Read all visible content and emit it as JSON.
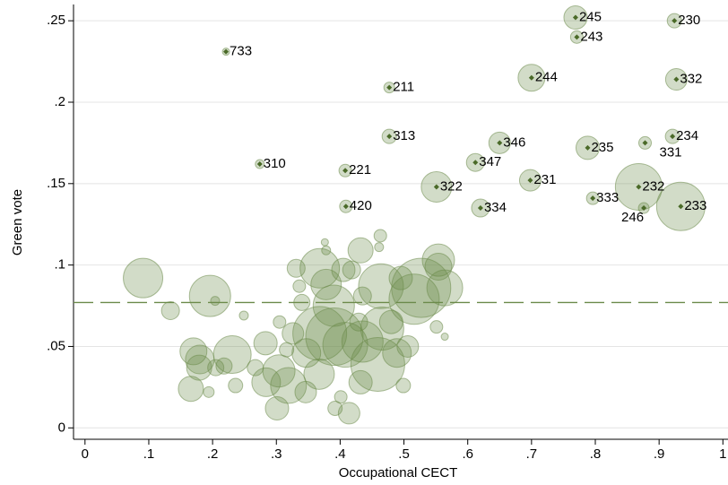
{
  "chart_data": {
    "type": "scatter",
    "x_label": "Occupational CECT",
    "y_label": "Green vote",
    "xlim": [
      -0.018,
      1.008
    ],
    "ylim": [
      -0.007,
      0.26
    ],
    "xticks": [
      0,
      {
        "value": 0.1,
        "label": ".1"
      },
      {
        "value": 0.2,
        "label": ".2"
      },
      {
        "value": 0.3,
        "label": ".3"
      },
      {
        "value": 0.4,
        "label": ".4"
      },
      {
        "value": 0.5,
        "label": ".5"
      },
      {
        "value": 0.6,
        "label": ".6"
      },
      {
        "value": 0.7,
        "label": ".7"
      },
      {
        "value": 0.8,
        "label": ".8"
      },
      {
        "value": 0.9,
        "label": ".9"
      },
      1
    ],
    "yticks": [
      0,
      {
        "value": 0.05,
        "label": ".05"
      },
      {
        "value": 0.1,
        "label": ".1"
      },
      {
        "value": 0.15,
        "label": ".15"
      },
      {
        "value": 0.2,
        "label": ".2"
      },
      {
        "value": 0.25,
        "label": ".25"
      }
    ],
    "grid": true,
    "hline": 0.077,
    "color": "#6b8a4a",
    "series": [
      {
        "x": [
          0.221,
          0.274,
          0.408,
          0.409,
          0.477,
          0.477,
          0.551,
          0.62,
          0.612,
          0.65,
          0.698,
          0.7,
          0.769,
          0.771,
          0.788,
          0.796,
          0.868,
          0.876,
          0.878,
          0.921,
          0.924,
          0.927,
          0.934,
          0.091,
          0.134,
          0.196,
          0.204,
          0.249,
          0.17,
          0.18,
          0.179,
          0.231,
          0.218,
          0.205,
          0.166,
          0.194,
          0.236,
          0.267,
          0.284,
          0.304,
          0.319,
          0.331,
          0.336,
          0.34,
          0.305,
          0.326,
          0.347,
          0.368,
          0.368,
          0.367,
          0.346,
          0.301,
          0.405,
          0.376,
          0.378,
          0.418,
          0.432,
          0.463,
          0.461,
          0.435,
          0.429,
          0.391,
          0.408,
          0.435,
          0.459,
          0.466,
          0.432,
          0.401,
          0.392,
          0.414,
          0.48,
          0.489,
          0.495,
          0.464,
          0.516,
          0.554,
          0.527,
          0.564,
          0.564,
          0.551,
          0.506,
          0.499,
          0.378,
          0.39,
          0.283,
          0.316,
          0.554
        ],
        "y": [
          0.231,
          0.162,
          0.158,
          0.136,
          0.209,
          0.179,
          0.148,
          0.135,
          0.163,
          0.175,
          0.152,
          0.215,
          0.252,
          0.24,
          0.172,
          0.141,
          0.148,
          0.135,
          0.175,
          0.179,
          0.25,
          0.214,
          0.136,
          0.092,
          0.072,
          0.081,
          0.078,
          0.069,
          0.047,
          0.042,
          0.037,
          0.045,
          0.038,
          0.037,
          0.024,
          0.022,
          0.026,
          0.037,
          0.028,
          0.035,
          0.026,
          0.098,
          0.087,
          0.077,
          0.065,
          0.058,
          0.046,
          0.058,
          0.098,
          0.033,
          0.022,
          0.012,
          0.097,
          0.114,
          0.109,
          0.097,
          0.109,
          0.118,
          0.111,
          0.081,
          0.065,
          0.056,
          0.051,
          0.053,
          0.039,
          0.061,
          0.028,
          0.019,
          0.012,
          0.009,
          0.065,
          0.046,
          0.092,
          0.087,
          0.079,
          0.099,
          0.086,
          0.086,
          0.056,
          0.062,
          0.05,
          0.026,
          0.088,
          0.075,
          0.052,
          0.048,
          0.103
        ],
        "size": [
          4,
          5,
          7,
          7,
          6,
          8,
          17,
          10,
          10,
          12,
          12,
          15,
          13,
          7,
          13,
          7,
          26,
          6,
          7,
          8,
          8,
          12,
          27,
          22,
          10,
          23,
          5,
          5,
          15,
          16,
          14,
          21,
          9,
          9,
          14,
          6,
          8,
          9,
          16,
          18,
          20,
          10,
          7,
          9,
          7,
          12,
          16,
          30,
          22,
          17,
          12,
          13,
          13,
          4,
          5,
          10,
          14,
          7,
          5,
          10,
          10,
          32,
          25,
          23,
          30,
          24,
          13,
          7,
          8,
          12,
          13,
          16,
          13,
          25,
          28,
          15,
          33,
          20,
          4,
          7,
          12,
          8,
          17,
          23,
          13,
          8,
          18
        ],
        "labels": [
          "733",
          "310",
          "221",
          "420",
          "211",
          "313",
          "322",
          "334",
          "347",
          "346",
          "231",
          "244",
          "245",
          "243",
          "235",
          "333",
          "232",
          "246",
          "331",
          "234",
          "230",
          "332",
          "233",
          null,
          null,
          null,
          null,
          null,
          null,
          null,
          null,
          null,
          null,
          null,
          null,
          null,
          null,
          null,
          null,
          null,
          null,
          null,
          null,
          null,
          null,
          null,
          null,
          null,
          null,
          null,
          null,
          null,
          null,
          null,
          null,
          null,
          null,
          null,
          null,
          null,
          null,
          null,
          null,
          null,
          null,
          null,
          null,
          null,
          null,
          null,
          null,
          null,
          null,
          null,
          null,
          null,
          null,
          null,
          null,
          null,
          null,
          null,
          null,
          null,
          null,
          null,
          null
        ]
      }
    ]
  }
}
